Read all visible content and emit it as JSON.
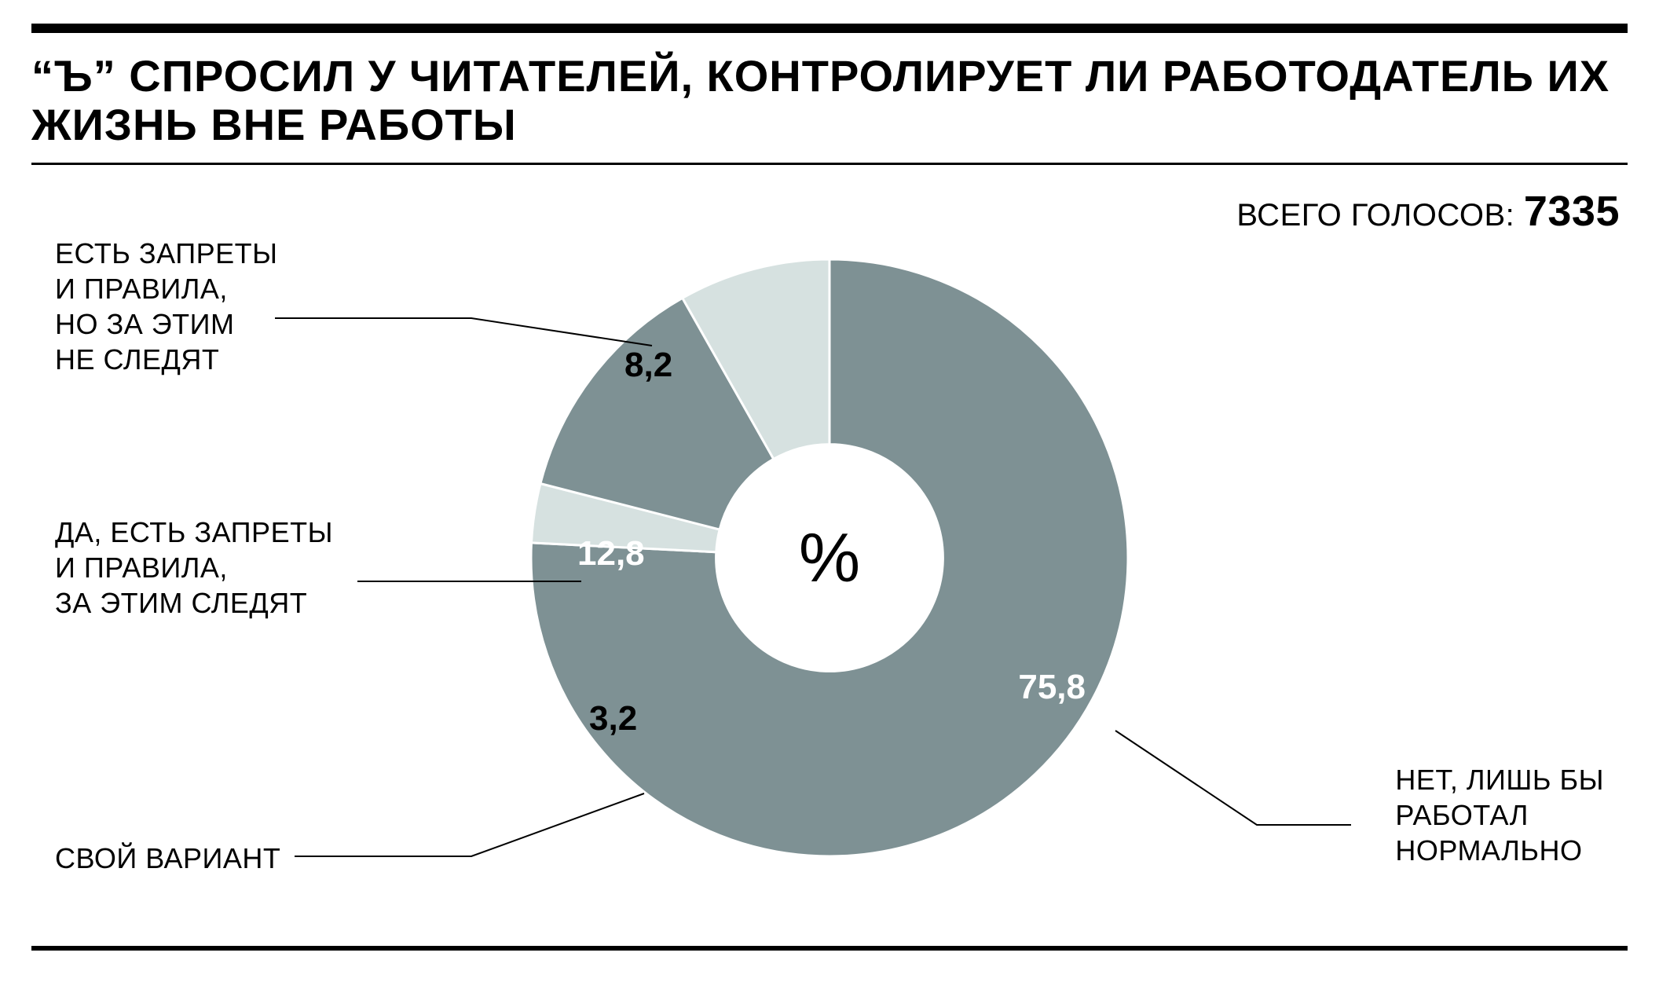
{
  "title": "“Ъ” СПРОСИЛ У ЧИТАТЕЛЕЙ, КОНТРОЛИРУЕТ ЛИ РАБОТОДАТЕЛЬ ИХ ЖИЗНЬ ВНЕ РАБОТЫ",
  "total_votes_label": "ВСЕГО ГОЛОСОВ: ",
  "total_votes_value": "7335",
  "center_symbol": "%",
  "chart": {
    "type": "donut",
    "background_color": "#ffffff",
    "inner_radius_ratio": 0.38,
    "outer_radius": 380,
    "start_angle_deg": -90,
    "slices": [
      {
        "label": "НЕТ, ЛИШЬ БЫ\nРАБОТАЛ\nНОРМАЛЬНО",
        "value": 75.8,
        "display": "75,8",
        "color": "#7e9194",
        "value_text_color": "#ffffff"
      },
      {
        "label": "СВОЙ ВАРИАНТ",
        "value": 3.2,
        "display": "3,2",
        "color": "#d6e1e0",
        "value_text_color": "#000000"
      },
      {
        "label": "ДА, ЕСТЬ ЗАПРЕТЫ\nИ ПРАВИЛА,\nЗА ЭТИМ СЛЕДЯТ",
        "value": 12.8,
        "display": "12,8",
        "color": "#7e9194",
        "value_text_color": "#ffffff"
      },
      {
        "label": "ЕСТЬ ЗАПРЕТЫ\nИ ПРАВИЛА,\nНО ЗА ЭТИМ\nНЕ СЛЕДЯТ",
        "value": 8.2,
        "display": "8,2",
        "color": "#d6e1e0",
        "value_text_color": "#000000"
      }
    ],
    "title_fontsize": 56,
    "label_fontsize": 36,
    "value_fontsize": 44,
    "rule_top_width": 12,
    "rule_bottom_width": 6,
    "rule_color": "#000000"
  }
}
